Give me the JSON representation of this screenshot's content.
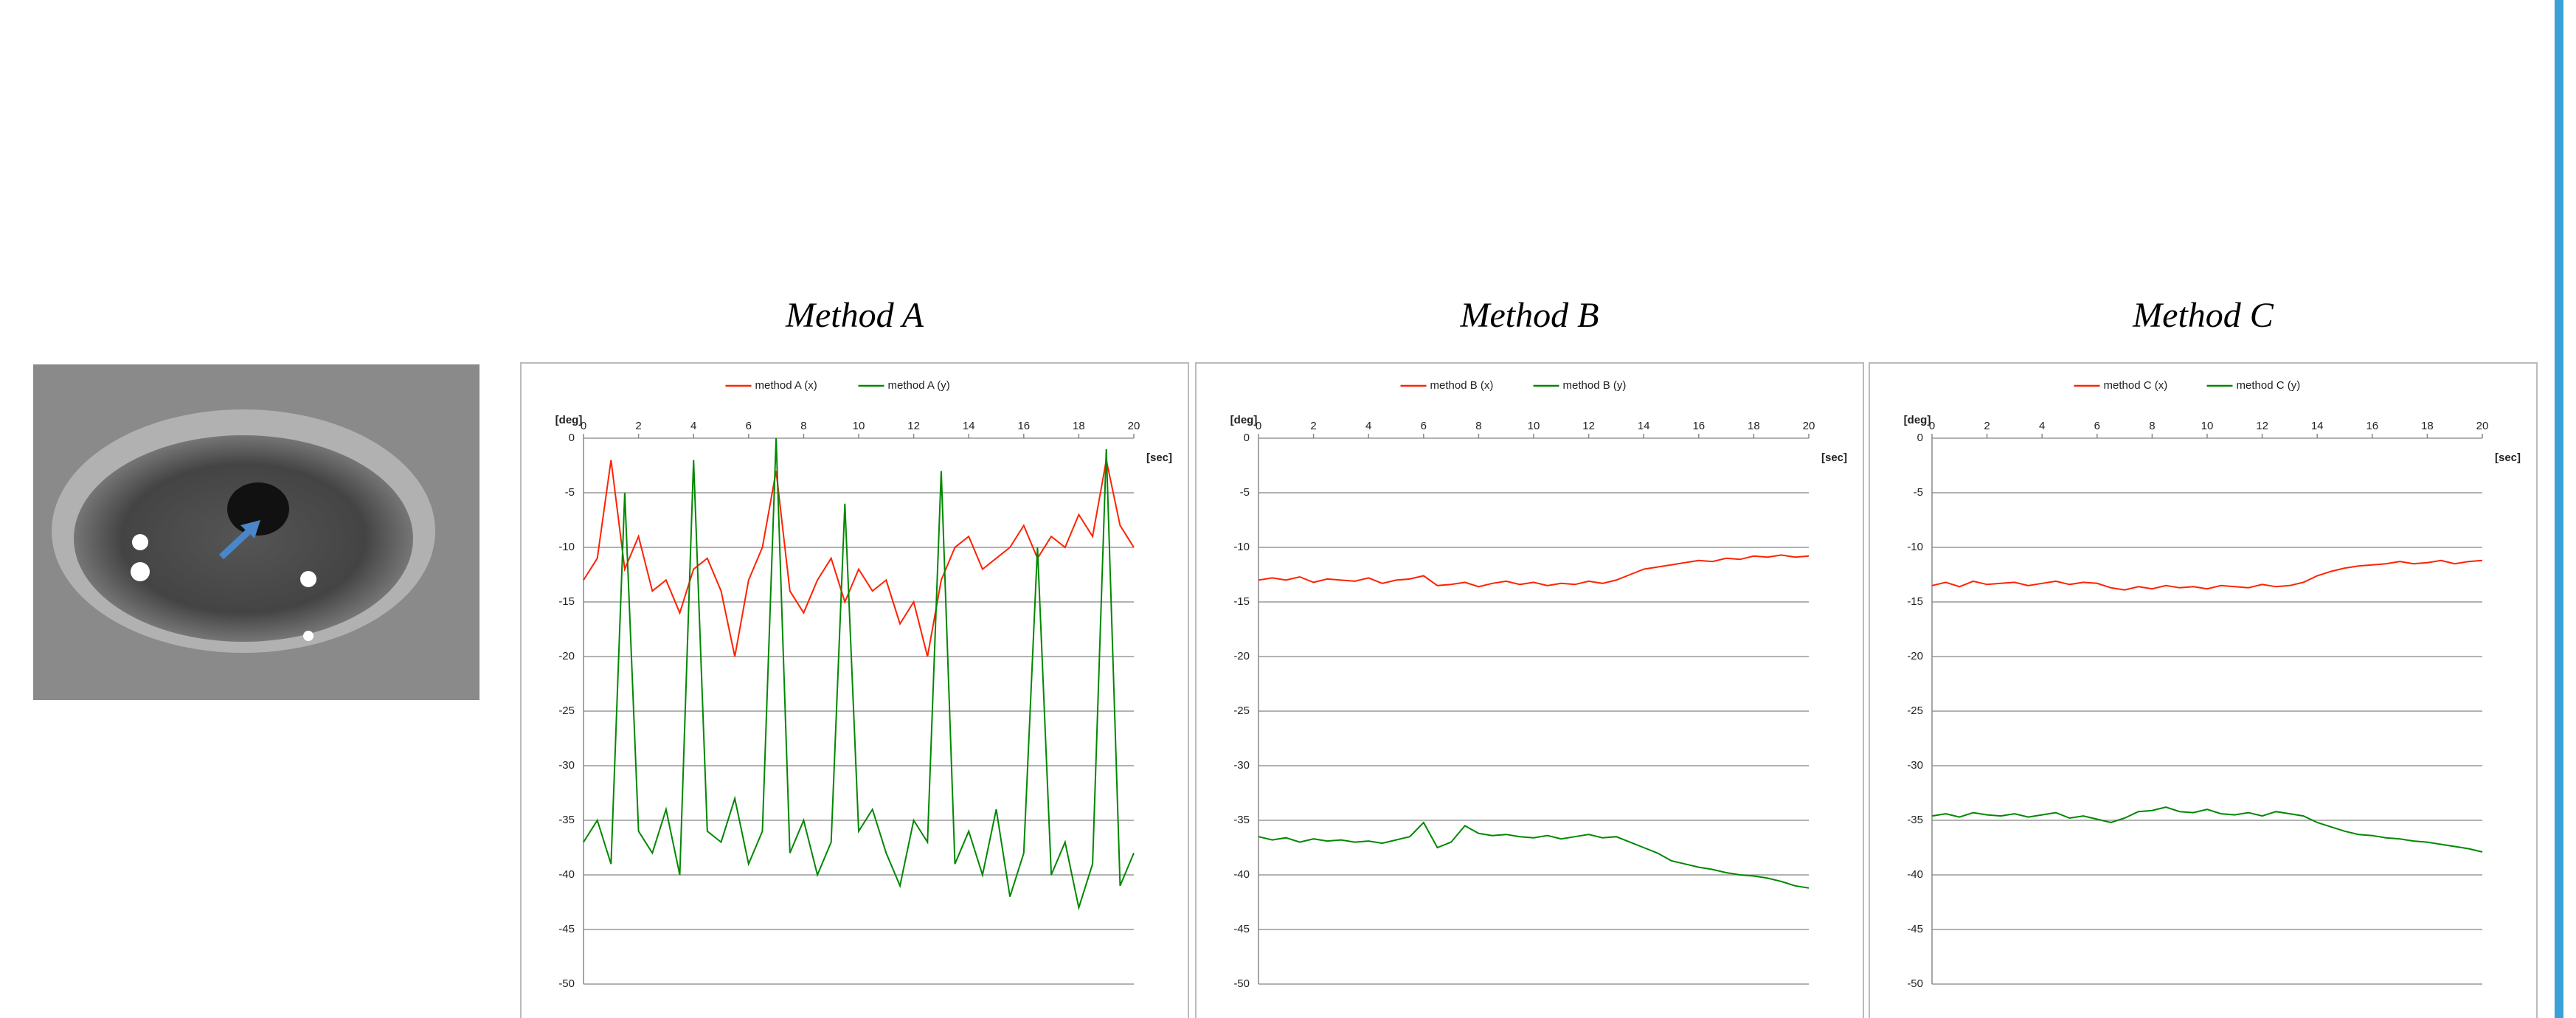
{
  "chart_data": [
    {
      "type": "line",
      "title": "Method A",
      "x_label": "[sec]",
      "y_label": "[deg]",
      "legend": "top",
      "grid": true,
      "xlim": [
        0,
        20
      ],
      "xticks": [
        0,
        2,
        4,
        6,
        8,
        10,
        12,
        14,
        16,
        18,
        20
      ],
      "ylim": [
        -50,
        0
      ],
      "yticks": [
        0,
        -5,
        -10,
        -15,
        -20,
        -25,
        -30,
        -35,
        -40,
        -45,
        -50
      ],
      "x": [
        0,
        0.5,
        1,
        1.5,
        2,
        2.5,
        3,
        3.5,
        4,
        4.5,
        5,
        5.5,
        6,
        6.5,
        7,
        7.5,
        8,
        8.5,
        9,
        9.5,
        10,
        10.5,
        11,
        11.5,
        12,
        12.5,
        13,
        13.5,
        14,
        14.5,
        15,
        15.5,
        16,
        16.5,
        17,
        17.5,
        18,
        18.5,
        19,
        19.5,
        20
      ],
      "series": [
        {
          "name": "method A (x)",
          "color": "#ff2200",
          "values": [
            -13,
            -11,
            -2,
            -12,
            -9,
            -14,
            -13,
            -16,
            -12,
            -11,
            -14,
            -20,
            -13,
            -10,
            -3,
            -14,
            -16,
            -13,
            -11,
            -15,
            -12,
            -14,
            -13,
            -17,
            -15,
            -20,
            -13,
            -10,
            -9,
            -12,
            -11,
            -10,
            -8,
            -11,
            -9,
            -10,
            -7,
            -9,
            -2,
            -8,
            -10
          ]
        },
        {
          "name": "method A (y)",
          "color": "#008800",
          "values": [
            -37,
            -35,
            -39,
            -5,
            -36,
            -38,
            -34,
            -40,
            -2,
            -36,
            -37,
            -33,
            -39,
            -36,
            0,
            -38,
            -35,
            -40,
            -37,
            -6,
            -36,
            -34,
            -38,
            -41,
            -35,
            -37,
            -3,
            -39,
            -36,
            -40,
            -34,
            -42,
            -38,
            -10,
            -40,
            -37,
            -43,
            -39,
            -1,
            -41,
            -38
          ]
        }
      ]
    },
    {
      "type": "line",
      "title": "Method B",
      "x_label": "[sec]",
      "y_label": "[deg]",
      "legend": "top",
      "grid": true,
      "xlim": [
        0,
        20
      ],
      "xticks": [
        0,
        2,
        4,
        6,
        8,
        10,
        12,
        14,
        16,
        18,
        20
      ],
      "ylim": [
        -50,
        0
      ],
      "yticks": [
        0,
        -5,
        -10,
        -15,
        -20,
        -25,
        -30,
        -35,
        -40,
        -45,
        -50
      ],
      "x": [
        0,
        0.5,
        1,
        1.5,
        2,
        2.5,
        3,
        3.5,
        4,
        4.5,
        5,
        5.5,
        6,
        6.5,
        7,
        7.5,
        8,
        8.5,
        9,
        9.5,
        10,
        10.5,
        11,
        11.5,
        12,
        12.5,
        13,
        13.5,
        14,
        14.5,
        15,
        15.5,
        16,
        16.5,
        17,
        17.5,
        18,
        18.5,
        19,
        19.5,
        20
      ],
      "series": [
        {
          "name": "method B (x)",
          "color": "#ff2200",
          "values": [
            -13,
            -12.8,
            -13,
            -12.7,
            -13.2,
            -12.9,
            -13,
            -13.1,
            -12.8,
            -13.3,
            -13,
            -12.9,
            -12.6,
            -13.5,
            -13.4,
            -13.2,
            -13.6,
            -13.3,
            -13.1,
            -13.4,
            -13.2,
            -13.5,
            -13.3,
            -13.4,
            -13.1,
            -13.3,
            -13,
            -12.5,
            -12,
            -11.8,
            -11.6,
            -11.4,
            -11.2,
            -11.3,
            -11,
            -11.1,
            -10.8,
            -10.9,
            -10.7,
            -10.9,
            -10.8
          ]
        },
        {
          "name": "method B (y)",
          "color": "#008800",
          "values": [
            -36.5,
            -36.8,
            -36.6,
            -37,
            -36.7,
            -36.9,
            -36.8,
            -37,
            -36.9,
            -37.1,
            -36.8,
            -36.5,
            -35.2,
            -37.5,
            -37,
            -35.5,
            -36.2,
            -36.4,
            -36.3,
            -36.5,
            -36.6,
            -36.4,
            -36.7,
            -36.5,
            -36.3,
            -36.6,
            -36.5,
            -37,
            -37.5,
            -38,
            -38.7,
            -39,
            -39.3,
            -39.5,
            -39.8,
            -40,
            -40.1,
            -40.3,
            -40.6,
            -41,
            -41.2
          ]
        }
      ]
    },
    {
      "type": "line",
      "title": "Method C",
      "x_label": "[sec]",
      "y_label": "[deg]",
      "legend": "top",
      "grid": true,
      "xlim": [
        0,
        20
      ],
      "xticks": [
        0,
        2,
        4,
        6,
        8,
        10,
        12,
        14,
        16,
        18,
        20
      ],
      "ylim": [
        -50,
        0
      ],
      "yticks": [
        0,
        -5,
        -10,
        -15,
        -20,
        -25,
        -30,
        -35,
        -40,
        -45,
        -50
      ],
      "x": [
        0,
        0.5,
        1,
        1.5,
        2,
        2.5,
        3,
        3.5,
        4,
        4.5,
        5,
        5.5,
        6,
        6.5,
        7,
        7.5,
        8,
        8.5,
        9,
        9.5,
        10,
        10.5,
        11,
        11.5,
        12,
        12.5,
        13,
        13.5,
        14,
        14.5,
        15,
        15.5,
        16,
        16.5,
        17,
        17.5,
        18,
        18.5,
        19,
        19.5,
        20
      ],
      "series": [
        {
          "name": "method C (x)",
          "color": "#ff2200",
          "values": [
            -13.5,
            -13.2,
            -13.6,
            -13.1,
            -13.4,
            -13.3,
            -13.2,
            -13.5,
            -13.3,
            -13.1,
            -13.4,
            -13.2,
            -13.3,
            -13.7,
            -13.9,
            -13.6,
            -13.8,
            -13.5,
            -13.7,
            -13.6,
            -13.8,
            -13.5,
            -13.6,
            -13.7,
            -13.4,
            -13.6,
            -13.5,
            -13.2,
            -12.6,
            -12.2,
            -11.9,
            -11.7,
            -11.6,
            -11.5,
            -11.3,
            -11.5,
            -11.4,
            -11.2,
            -11.5,
            -11.3,
            -11.2
          ]
        },
        {
          "name": "method C (y)",
          "color": "#008800",
          "values": [
            -34.6,
            -34.4,
            -34.7,
            -34.3,
            -34.5,
            -34.6,
            -34.4,
            -34.7,
            -34.5,
            -34.3,
            -34.8,
            -34.6,
            -34.9,
            -35.2,
            -34.8,
            -34.2,
            -34.1,
            -33.8,
            -34.2,
            -34.3,
            -34,
            -34.4,
            -34.5,
            -34.3,
            -34.6,
            -34.2,
            -34.4,
            -34.6,
            -35.2,
            -35.6,
            -36,
            -36.3,
            -36.4,
            -36.6,
            -36.7,
            -36.9,
            -37,
            -37.2,
            -37.4,
            -37.6,
            -37.9
          ]
        }
      ]
    }
  ]
}
